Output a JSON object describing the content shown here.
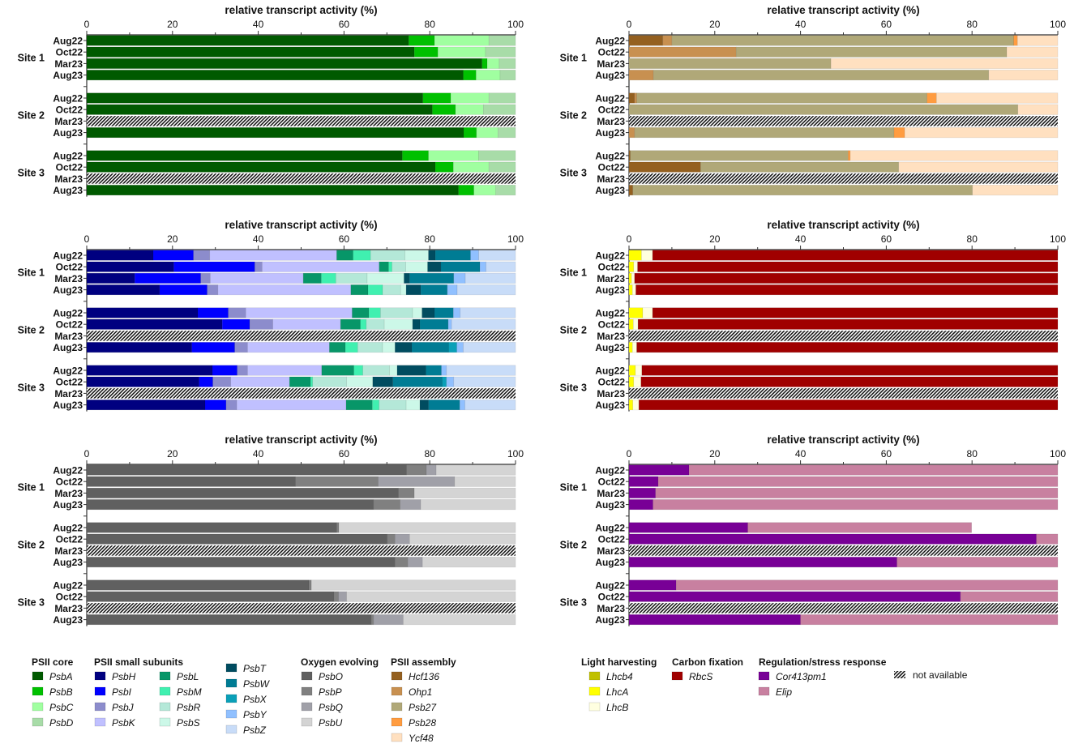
{
  "chart_data": [
    {
      "type": "bar",
      "orientation": "horizontal",
      "stacked": true,
      "panel": "PSII core",
      "xlabel": "relative transcript activity (%)",
      "xlim": [
        0,
        100
      ],
      "xticks": [
        "0",
        "20",
        "40",
        "60",
        "80",
        "100"
      ],
      "sites": [
        "Site 1",
        "Site 2",
        "Site 3"
      ],
      "months": [
        "Aug22",
        "Oct22",
        "Mar23",
        "Aug23"
      ],
      "series": [
        "PsbA",
        "PsbB",
        "PsbC",
        "PsbD"
      ],
      "values": [
        [
          [
            75.1,
            6.0,
            12.7,
            6.2
          ],
          [
            76.4,
            5.5,
            11.1,
            7.0
          ],
          [
            92.2,
            1.2,
            2.8,
            3.8
          ],
          [
            87.8,
            3.0,
            5.6,
            3.6
          ]
        ],
        [
          [
            78.4,
            6.5,
            8.9,
            6.2
          ],
          [
            80.6,
            5.4,
            6.5,
            7.5
          ],
          null,
          [
            87.9,
            3.0,
            5.0,
            4.1
          ]
        ],
        [
          [
            73.6,
            6.1,
            11.7,
            8.6
          ],
          [
            81.3,
            4.2,
            8.3,
            6.2
          ],
          null,
          [
            86.7,
            3.6,
            5.1,
            4.6
          ]
        ]
      ]
    },
    {
      "type": "bar",
      "orientation": "horizontal",
      "stacked": true,
      "panel": "PSII assembly",
      "xlabel": "relative transcript activity (%)",
      "xlim": [
        0,
        100
      ],
      "xticks": [
        "0",
        "20",
        "40",
        "60",
        "80",
        "100"
      ],
      "sites": [
        "Site 1",
        "Site 2",
        "Site 3"
      ],
      "months": [
        "Aug22",
        "Oct22",
        "Mar23",
        "Aug23"
      ],
      "series": [
        "Hcf136",
        "Ohp1",
        "Psb27",
        "Psb28",
        "Ycf48"
      ],
      "values": [
        [
          [
            7.9,
            2.1,
            79.7,
            0.9,
            9.4
          ],
          [
            0,
            25.0,
            63.1,
            0,
            11.9
          ],
          [
            0,
            0,
            47.1,
            0,
            52.9
          ],
          [
            0,
            5.7,
            78.2,
            0,
            16.1
          ]
        ],
        [
          [
            1.3,
            0.5,
            67.7,
            2.2,
            28.3
          ],
          [
            0,
            0,
            90.7,
            0,
            9.3
          ],
          null,
          [
            0,
            1.3,
            60.5,
            2.5,
            35.7
          ]
        ],
        [
          [
            0.3,
            0,
            50.8,
            0.5,
            48.4
          ],
          [
            16.7,
            0,
            46.2,
            0,
            37.1
          ],
          null,
          [
            0.9,
            0,
            79.2,
            0,
            19.9
          ]
        ]
      ]
    },
    {
      "type": "bar",
      "orientation": "horizontal",
      "stacked": true,
      "panel": "PSII small subunits",
      "xlabel": "relative transcript activity (%)",
      "xlim": [
        0,
        100
      ],
      "xticks": [
        "0",
        "20",
        "40",
        "60",
        "80",
        "100"
      ],
      "sites": [
        "Site 1",
        "Site 2",
        "Site 3"
      ],
      "months": [
        "Aug22",
        "Oct22",
        "Mar23",
        "Aug23"
      ],
      "series": [
        "PsbH",
        "PsbI",
        "PsbJ",
        "PsbK",
        "PsbL",
        "PsbM",
        "PsbR",
        "PsbS",
        "PsbT",
        "PsbW",
        "PsbX",
        "PsbY",
        "PsbZ"
      ],
      "values": [
        [
          [
            15.5,
            9.4,
            3.8,
            29.6,
            3.8,
            4.1,
            8.0,
            5.5,
            1.6,
            8.2,
            0,
            1.9,
            8.6
          ],
          [
            20.3,
            18.9,
            1.7,
            27.3,
            2.2,
            0.8,
            3.2,
            5.1,
            3.1,
            9.1,
            0,
            1.4,
            6.9
          ],
          [
            11.2,
            15.4,
            2.2,
            21.7,
            4.2,
            3.4,
            7.3,
            8.6,
            1.3,
            10.3,
            0,
            2.7,
            11.7
          ],
          [
            17.0,
            11.1,
            2.5,
            31.0,
            4.0,
            3.4,
            4.2,
            1.3,
            3.4,
            6.2,
            0,
            2.3,
            13.6
          ]
        ],
        [
          [
            25.9,
            7.1,
            4.1,
            24.8,
            3.9,
            2.7,
            7.5,
            2.2,
            2.9,
            4.4,
            0,
            1.6,
            12.9
          ],
          [
            31.6,
            6.4,
            5.4,
            15.8,
            4.6,
            1.4,
            4.2,
            6.6,
            1.7,
            6.6,
            0,
            0.8,
            14.9
          ],
          null,
          [
            24.5,
            10.0,
            3.0,
            19.1,
            3.7,
            2.9,
            5.8,
            2.9,
            3.9,
            8.6,
            1.9,
            1.5,
            12.2
          ]
        ],
        [
          [
            29.3,
            5.8,
            2.4,
            17.3,
            7.5,
            2.1,
            6.2,
            1.8,
            6.7,
            3.6,
            0,
            1.2,
            16.1
          ],
          [
            26.2,
            3.2,
            4.2,
            13.7,
            4.9,
            0.5,
            7.9,
            6.1,
            4.7,
            11.5,
            1.0,
            1.7,
            14.4
          ],
          null,
          [
            27.6,
            4.9,
            2.5,
            25.5,
            6.1,
            1.6,
            6.3,
            3.2,
            2.0,
            7.3,
            0,
            1.2,
            11.8
          ]
        ]
      ]
    },
    {
      "type": "bar",
      "orientation": "horizontal",
      "stacked": true,
      "panel": "Light harvesting / Carbon fixation",
      "xlabel": "relative transcript activity (%)",
      "xlim": [
        0,
        100
      ],
      "xticks": [
        "0",
        "20",
        "40",
        "60",
        "80",
        "100"
      ],
      "sites": [
        "Site 1",
        "Site 2",
        "Site 3"
      ],
      "months": [
        "Aug22",
        "Oct22",
        "Mar23",
        "Aug23"
      ],
      "series": [
        "Lhcb4",
        "LhcA",
        "LhcB",
        "RbcS"
      ],
      "values": [
        [
          [
            0,
            2.9,
            2.6,
            94.5
          ],
          [
            0,
            1.1,
            0.9,
            98.0
          ],
          [
            0,
            0.6,
            0.7,
            98.7
          ],
          [
            0,
            0.8,
            0.8,
            98.4
          ]
        ],
        [
          [
            0,
            3.2,
            2.3,
            94.5
          ],
          [
            0,
            1.0,
            1.1,
            97.9
          ],
          null,
          [
            0,
            0.8,
            1.0,
            98.2
          ]
        ],
        [
          [
            0,
            1.5,
            1.5,
            97.0
          ],
          [
            0,
            1.1,
            1.7,
            97.2
          ],
          null,
          [
            0,
            0.9,
            1.4,
            97.7
          ]
        ]
      ]
    },
    {
      "type": "bar",
      "orientation": "horizontal",
      "stacked": true,
      "panel": "Oxygen evolving",
      "xlabel": "relative transcript activity (%)",
      "xlim": [
        0,
        100
      ],
      "xticks": [
        "0",
        "20",
        "40",
        "60",
        "80",
        "100"
      ],
      "sites": [
        "Site 1",
        "Site 2",
        "Site 3"
      ],
      "months": [
        "Aug22",
        "Oct22",
        "Mar23",
        "Aug23"
      ],
      "series": [
        "PsbO",
        "PsbP",
        "PsbQ",
        "PsbU"
      ],
      "values": [
        [
          [
            74.6,
            4.6,
            2.3,
            18.5
          ],
          [
            48.7,
            19.3,
            17.8,
            14.2
          ],
          [
            72.7,
            3.7,
            0,
            23.6
          ],
          [
            66.9,
            6.2,
            4.8,
            22.1
          ]
        ],
        [
          [
            58.3,
            0.5,
            0,
            41.2
          ],
          [
            70.1,
            1.8,
            3.4,
            24.7
          ],
          null,
          [
            71.9,
            3.0,
            3.4,
            21.7
          ]
        ],
        [
          [
            51.8,
            0.6,
            0,
            47.6
          ],
          [
            57.7,
            1.0,
            1.9,
            39.4
          ],
          null,
          [
            66.4,
            0.5,
            6.9,
            26.2
          ]
        ]
      ]
    },
    {
      "type": "bar",
      "orientation": "horizontal",
      "stacked": true,
      "panel": "Regulation/stress response",
      "xlabel": "relative transcript activity (%)",
      "xlim": [
        0,
        100
      ],
      "xticks": [
        "0",
        "20",
        "40",
        "60",
        "80",
        "100"
      ],
      "sites": [
        "Site 1",
        "Site 2",
        "Site 3"
      ],
      "months": [
        "Aug22",
        "Oct22",
        "Mar23",
        "Aug23"
      ],
      "series": [
        "Cor413pm1",
        "Elip"
      ],
      "values": [
        [
          [
            14.0,
            86.0
          ],
          [
            6.8,
            93.2
          ],
          [
            6.2,
            93.8
          ],
          [
            5.6,
            94.4
          ]
        ],
        [
          [
            27.7,
            52.2
          ],
          [
            95.0,
            5.0
          ],
          null,
          [
            62.5,
            37.5
          ]
        ],
        [
          [
            11.0,
            89.0
          ],
          [
            77.3,
            22.7
          ],
          null,
          [
            40.0,
            60.0
          ]
        ]
      ]
    }
  ],
  "colors": {
    "PsbA": "#005a00",
    "PsbB": "#00c000",
    "PsbC": "#a0ffa0",
    "PsbD": "#a8dca8",
    "PsbH": "#000080",
    "PsbI": "#0000ff",
    "PsbJ": "#8c8ccc",
    "PsbK": "#c0c0ff",
    "PsbL": "#079668",
    "PsbM": "#40f0b0",
    "PsbR": "#b4e8d8",
    "PsbS": "#ccf8e8",
    "PsbT": "#004c60",
    "PsbW": "#007c94",
    "PsbX": "#0aa0b8",
    "PsbY": "#90c0ff",
    "PsbZ": "#c8dcf8",
    "PsbO": "#606060",
    "PsbP": "#808080",
    "PsbQ": "#a0a0a8",
    "PsbU": "#d4d4d4",
    "Hcf136": "#946020",
    "Ohp1": "#c89050",
    "Psb27": "#b0a878",
    "Psb28": "#ff9c40",
    "Ycf48": "#ffe0c0",
    "Lhcb4": "#c0c000",
    "LhcA": "#ffff00",
    "LhcB": "#ffffe0",
    "RbcS": "#a00000",
    "Cor413pm1": "#780096",
    "Elip": "#c880a0"
  },
  "legend": {
    "groups": [
      {
        "title": "PSII core",
        "items": [
          "PsbA",
          "PsbB",
          "PsbC",
          "PsbD"
        ]
      },
      {
        "title": "PSII small subunits",
        "items": [
          "PsbH",
          "PsbI",
          "PsbJ",
          "PsbK",
          "PsbL",
          "PsbM",
          "PsbR",
          "PsbS",
          "PsbT",
          "PsbW",
          "PsbX",
          "PsbY",
          "PsbZ"
        ]
      },
      {
        "title": "Oxygen evolving",
        "items": [
          "PsbO",
          "PsbP",
          "PsbQ",
          "PsbU"
        ]
      },
      {
        "title": "PSII assembly",
        "items": [
          "Hcf136",
          "Ohp1",
          "Psb27",
          "Psb28",
          "Ycf48"
        ]
      },
      {
        "title": "Light harvesting",
        "items": [
          "Lhcb4",
          "LhcA",
          "LhcB"
        ]
      },
      {
        "title": "Carbon fixation",
        "items": [
          "RbcS"
        ]
      },
      {
        "title": "Regulation/stress response",
        "items": [
          "Cor413pm1",
          "Elip"
        ]
      }
    ],
    "not_available": "not available"
  }
}
